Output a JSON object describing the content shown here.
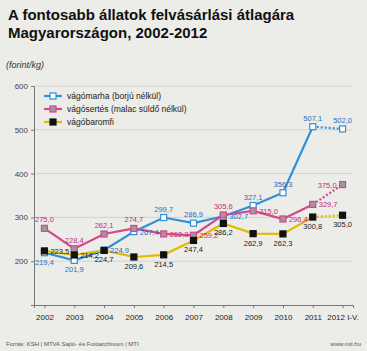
{
  "chart_data": {
    "type": "line",
    "title": "A fontosabb állatok felvásárlási átlagára Magyarországon, 2002-2012",
    "ylabel": "(forint/kg)",
    "categories": [
      "2002",
      "2003",
      "2004",
      "2005",
      "2006",
      "2007",
      "2008",
      "2009",
      "2010",
      "2011",
      "2012 I-V."
    ],
    "series": [
      {
        "name": "vágómarha (borjú nélkül)",
        "color": "#2f8fd8",
        "marker": "square",
        "values": [
          219.4,
          201.9,
          224.9,
          267.4,
          299.7,
          286.9,
          302.7,
          327.1,
          356.3,
          507.1,
          502.0
        ],
        "value_labels": [
          "219,4",
          "201,9",
          "224,9",
          "267,4",
          "299,7",
          "286,9",
          "302,7",
          "327,1",
          "356,3",
          "507,1",
          "502,0"
        ]
      },
      {
        "name": "vágósertés (malac süldő nélkül)",
        "color": "#d6478e",
        "marker": "square",
        "values": [
          275.0,
          228.4,
          262.1,
          274.7,
          262.3,
          259.2,
          305.6,
          315.0,
          296.4,
          329.7,
          375.0
        ],
        "value_labels": [
          "275,0",
          "228,4",
          "262,1",
          "274,7",
          "262,3",
          "259,2",
          "305,6",
          "315,0",
          "296,4",
          "329,7",
          "375,0"
        ]
      },
      {
        "name": "vágóbaromfi",
        "color": "#e6b800",
        "marker": "square",
        "values": [
          223.5,
          214.2,
          224.7,
          209.6,
          214.5,
          247.4,
          286.2,
          262.9,
          262.3,
          300.8,
          305.0
        ],
        "value_labels": [
          "223,5",
          "214,2",
          "224,7",
          "209,6",
          "214,5",
          "247,4",
          "286,2",
          "262,9",
          "262,3",
          "300,8",
          "305,0"
        ]
      }
    ],
    "ylim": [
      100,
      600
    ],
    "yticks": [
      200,
      300,
      400,
      500,
      600
    ],
    "grid": true,
    "legend": "upper left",
    "data_labels": true,
    "annotations": [
      "Forrás: KSH | MTVA Sajtó- és Fotóarchívum | MTI",
      "www.mti.hu"
    ]
  }
}
